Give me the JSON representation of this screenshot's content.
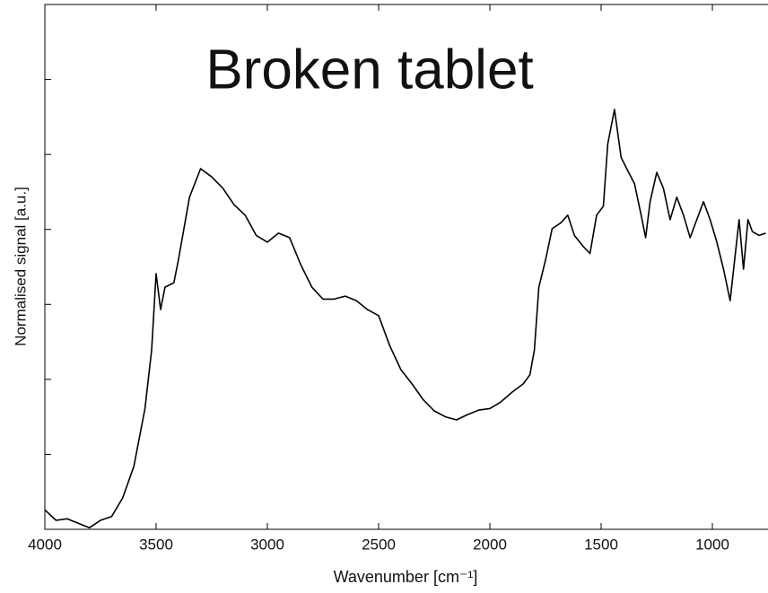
{
  "chart_data": {
    "type": "line",
    "annotation": "Broken tablet",
    "xlabel": "Wavenumber [cm⁻¹]",
    "ylabel": "Normalised signal [a.u.]",
    "xlim": [
      4000,
      750
    ],
    "xticks": [
      4000,
      3500,
      3000,
      2500,
      2000,
      1500,
      1000
    ],
    "ylim": [
      0,
      7
    ],
    "yticks": [
      0,
      1,
      2,
      3,
      4,
      5,
      6,
      7
    ],
    "grid": false,
    "series": [
      {
        "name": "Broken tablet",
        "color": "#000000",
        "x": [
          4000,
          3950,
          3900,
          3850,
          3800,
          3750,
          3700,
          3650,
          3600,
          3550,
          3520,
          3500,
          3480,
          3460,
          3420,
          3400,
          3350,
          3300,
          3250,
          3200,
          3150,
          3100,
          3050,
          3000,
          2950,
          2900,
          2850,
          2800,
          2750,
          2700,
          2650,
          2600,
          2550,
          2500,
          2450,
          2400,
          2350,
          2300,
          2250,
          2200,
          2150,
          2100,
          2050,
          2000,
          1950,
          1900,
          1850,
          1820,
          1800,
          1780,
          1750,
          1720,
          1680,
          1650,
          1620,
          1580,
          1550,
          1520,
          1490,
          1470,
          1440,
          1410,
          1380,
          1350,
          1320,
          1300,
          1280,
          1250,
          1220,
          1190,
          1160,
          1130,
          1100,
          1070,
          1040,
          1010,
          980,
          950,
          920,
          900,
          880,
          860,
          840,
          820,
          790,
          760
        ],
        "values": [
          0.26,
          0.12,
          0.14,
          0.08,
          0.02,
          0.12,
          0.17,
          0.42,
          0.84,
          1.61,
          2.39,
          3.41,
          2.93,
          3.23,
          3.29,
          3.59,
          4.43,
          4.81,
          4.7,
          4.55,
          4.33,
          4.19,
          3.92,
          3.83,
          3.95,
          3.89,
          3.53,
          3.23,
          3.07,
          3.07,
          3.11,
          3.05,
          2.93,
          2.85,
          2.45,
          2.13,
          1.94,
          1.73,
          1.58,
          1.5,
          1.46,
          1.53,
          1.59,
          1.61,
          1.7,
          1.83,
          1.94,
          2.06,
          2.39,
          3.23,
          3.59,
          4.01,
          4.09,
          4.19,
          3.92,
          3.77,
          3.68,
          4.19,
          4.31,
          5.14,
          5.6,
          4.96,
          4.78,
          4.61,
          4.19,
          3.89,
          4.37,
          4.76,
          4.55,
          4.13,
          4.43,
          4.19,
          3.89,
          4.13,
          4.37,
          4.13,
          3.83,
          3.47,
          3.05,
          3.59,
          4.13,
          3.47,
          4.13,
          3.97,
          3.92,
          3.95
        ]
      }
    ]
  }
}
